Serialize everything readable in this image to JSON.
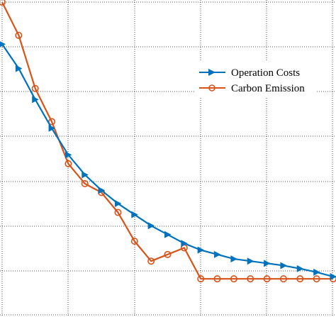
{
  "chart_data": {
    "type": "line",
    "grid": true,
    "legend_position": "top-right",
    "title": "",
    "xlabel": "",
    "ylabel": "",
    "x": [
      0,
      1,
      2,
      3,
      4,
      5,
      6,
      7,
      8,
      9,
      10,
      11,
      12,
      13,
      14,
      15,
      16,
      17,
      18,
      19,
      20
    ],
    "series": [
      {
        "name": "Operation Costs",
        "color": "#0072BD",
        "marker": "triangle-right",
        "values": [
          60.5,
          55.0,
          48.0,
          41.5,
          35.5,
          31.0,
          27.5,
          24.5,
          22.0,
          19.5,
          17.5,
          15.5,
          14.0,
          13.0,
          12.0,
          11.5,
          11.0,
          10.5,
          9.8,
          9.0,
          8.0
        ]
      },
      {
        "name": "Carbon Emission",
        "color": "#D95319",
        "marker": "circle",
        "values": [
          70.0,
          62.5,
          50.5,
          43.0,
          33.5,
          29.0,
          27.0,
          22.5,
          16.0,
          11.5,
          13.0,
          14.5,
          7.5,
          7.5,
          7.5,
          7.5,
          7.5,
          7.5,
          7.5,
          7.5,
          7.5
        ]
      }
    ]
  },
  "legend": {
    "items": [
      {
        "label": "Operation Costs",
        "color": "#0072BD",
        "marker": "triangle-right"
      },
      {
        "label": "Carbon Emission",
        "color": "#D95319",
        "marker": "circle"
      }
    ]
  }
}
